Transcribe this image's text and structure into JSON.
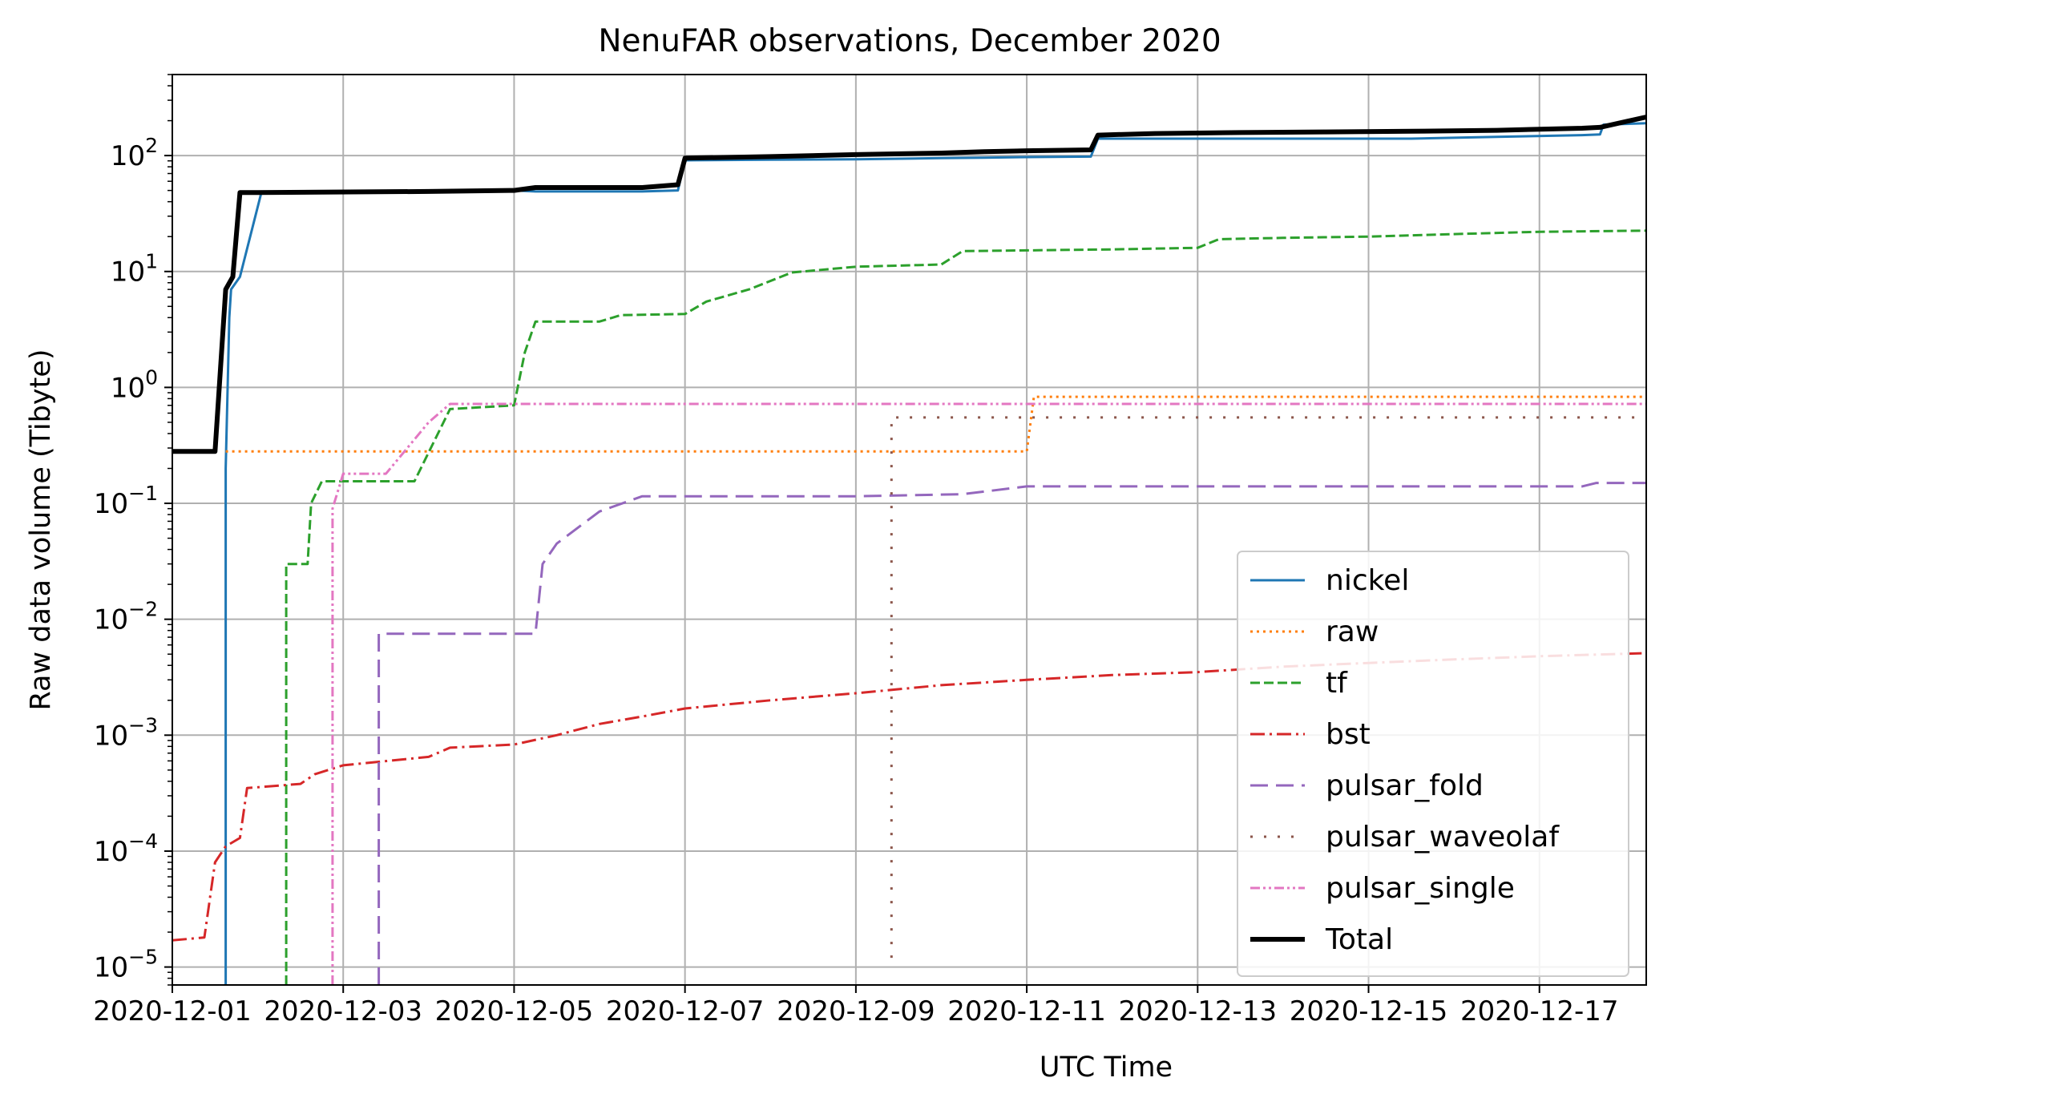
{
  "chart_data": {
    "type": "line",
    "title": "NenuFAR observations, December 2020",
    "xlabel": "UTC Time",
    "ylabel": "Raw data volume (Tibyte)",
    "x_range": [
      "2020-12-01T00:00",
      "2020-12-18T06:00"
    ],
    "y_scale": "log",
    "ylim": [
      7e-06,
      500
    ],
    "grid": true,
    "legend_position": "lower right",
    "x_ticks": [
      {
        "date": "2020-12-01",
        "label": "2020-12-01"
      },
      {
        "date": "2020-12-03",
        "label": "2020-12-03"
      },
      {
        "date": "2020-12-05",
        "label": "2020-12-05"
      },
      {
        "date": "2020-12-07",
        "label": "2020-12-07"
      },
      {
        "date": "2020-12-09",
        "label": "2020-12-09"
      },
      {
        "date": "2020-12-11",
        "label": "2020-12-11"
      },
      {
        "date": "2020-12-13",
        "label": "2020-12-13"
      },
      {
        "date": "2020-12-15",
        "label": "2020-12-15"
      },
      {
        "date": "2020-12-17",
        "label": "2020-12-17"
      }
    ],
    "y_ticks": [
      {
        "value": 1e-05,
        "base": "10",
        "exp": "−5"
      },
      {
        "value": 0.0001,
        "base": "10",
        "exp": "−4"
      },
      {
        "value": 0.001,
        "base": "10",
        "exp": "−3"
      },
      {
        "value": 0.01,
        "base": "10",
        "exp": "−2"
      },
      {
        "value": 0.1,
        "base": "10",
        "exp": "−1"
      },
      {
        "value": 1,
        "base": "10",
        "exp": "0"
      },
      {
        "value": 10,
        "base": "10",
        "exp": "1"
      },
      {
        "value": 100,
        "base": "10",
        "exp": "2"
      }
    ],
    "series": [
      {
        "name": "nickel",
        "color": "#1f77b4",
        "style": "solid",
        "x": [
          "2020-12-01T15:00",
          "2020-12-01T15:00",
          "2020-12-01T16:00",
          "2020-12-01T16:30",
          "2020-12-01T19:00",
          "2020-12-02T01:00",
          "2020-12-04T00:00",
          "2020-12-05T00:00",
          "2020-12-05T06:00",
          "2020-12-06T12:00",
          "2020-12-06T22:00",
          "2020-12-07T00:00",
          "2020-12-08T00:00",
          "2020-12-09T00:00",
          "2020-12-10T00:00",
          "2020-12-10T12:00",
          "2020-12-11T00:00",
          "2020-12-11T18:00",
          "2020-12-11T20:00",
          "2020-12-12T12:00",
          "2020-12-13T12:00",
          "2020-12-14T12:00",
          "2020-12-15T12:00",
          "2020-12-16T12:00",
          "2020-12-17T12:00",
          "2020-12-17T17:00",
          "2020-12-17T18:00",
          "2020-12-18T06:00"
        ],
        "y": [
          7e-06,
          0.2,
          4,
          7,
          9,
          48,
          49,
          50,
          49,
          49,
          50,
          91,
          92,
          93,
          95,
          96,
          97,
          98,
          140,
          140,
          140,
          140,
          140,
          145,
          150,
          152,
          185,
          190
        ]
      },
      {
        "name": "raw",
        "color": "#ff7f0e",
        "style": "dotted",
        "x": [
          "2020-12-01T15:00",
          "2020-12-11T00:00",
          "2020-12-11T02:00",
          "2020-12-18T06:00"
        ],
        "y": [
          0.28,
          0.28,
          0.83,
          0.83
        ]
      },
      {
        "name": "tf",
        "color": "#2ca02c",
        "style": "dashed",
        "x": [
          "2020-12-02T08:00",
          "2020-12-02T08:00",
          "2020-12-02T10:00",
          "2020-12-02T14:00",
          "2020-12-02T15:00",
          "2020-12-02T18:00",
          "2020-12-03T00:00",
          "2020-12-03T12:00",
          "2020-12-03T20:00",
          "2020-12-04T06:00",
          "2020-12-05T00:00",
          "2020-12-05T03:00",
          "2020-12-05T06:00",
          "2020-12-06T00:00",
          "2020-12-06T06:00",
          "2020-12-07T00:00",
          "2020-12-07T06:00",
          "2020-12-07T18:00",
          "2020-12-08T06:00",
          "2020-12-09T00:00",
          "2020-12-10T00:00",
          "2020-12-10T06:00",
          "2020-12-11T00:00",
          "2020-12-12T00:00",
          "2020-12-13T00:00",
          "2020-12-13T06:00",
          "2020-12-14T00:00",
          "2020-12-15T00:00",
          "2020-12-16T00:00",
          "2020-12-17T00:00",
          "2020-12-18T06:00"
        ],
        "y": [
          7e-06,
          0.03,
          0.03,
          0.03,
          0.1,
          0.155,
          0.155,
          0.155,
          0.155,
          0.65,
          0.7,
          2.0,
          3.7,
          3.7,
          4.2,
          4.3,
          5.5,
          7.0,
          9.8,
          11,
          11.5,
          15,
          15.2,
          15.5,
          16,
          19,
          19.5,
          20,
          21,
          22,
          22.5
        ]
      },
      {
        "name": "bst",
        "color": "#d62728",
        "style": "dashdot",
        "x": [
          "2020-12-01T00:00",
          "2020-12-01T09:00",
          "2020-12-01T12:00",
          "2020-12-01T15:00",
          "2020-12-01T19:00",
          "2020-12-01T21:00",
          "2020-12-02T12:00",
          "2020-12-02T16:00",
          "2020-12-03T00:00",
          "2020-12-04T00:00",
          "2020-12-04T06:00",
          "2020-12-05T00:00",
          "2020-12-05T12:00",
          "2020-12-06T00:00",
          "2020-12-06T12:00",
          "2020-12-07T00:00",
          "2020-12-08T00:00",
          "2020-12-09T00:00",
          "2020-12-10T00:00",
          "2020-12-11T00:00",
          "2020-12-12T00:00",
          "2020-12-13T00:00",
          "2020-12-14T00:00",
          "2020-12-15T00:00",
          "2020-12-16T00:00",
          "2020-12-17T00:00",
          "2020-12-18T06:00"
        ],
        "y": [
          1.7e-05,
          1.8e-05,
          8e-05,
          0.00011,
          0.00013,
          0.00035,
          0.00038,
          0.00046,
          0.00055,
          0.00065,
          0.00078,
          0.00083,
          0.001,
          0.00125,
          0.00145,
          0.0017,
          0.002,
          0.0023,
          0.0027,
          0.003,
          0.0033,
          0.0035,
          0.0039,
          0.0042,
          0.0045,
          0.0048,
          0.0051
        ]
      },
      {
        "name": "pulsar_fold",
        "color": "#9467bd",
        "style": "longdash",
        "x": [
          "2020-12-03T10:00",
          "2020-12-03T10:00",
          "2020-12-05T06:00",
          "2020-12-05T08:00",
          "2020-12-05T12:00",
          "2020-12-06T00:00",
          "2020-12-06T12:00",
          "2020-12-08T00:00",
          "2020-12-09T00:00",
          "2020-12-10T06:00",
          "2020-12-11T00:00",
          "2020-12-17T12:00",
          "2020-12-17T16:00",
          "2020-12-18T06:00"
        ],
        "y": [
          7e-06,
          0.0075,
          0.0075,
          0.03,
          0.045,
          0.085,
          0.115,
          0.115,
          0.115,
          0.12,
          0.14,
          0.14,
          0.15,
          0.15
        ]
      },
      {
        "name": "pulsar_waveolaf",
        "color": "#8c564b",
        "style": "sparse",
        "x": [
          "2020-12-09T10:00",
          "2020-12-09T10:00",
          "2020-12-18T06:00"
        ],
        "y": [
          1.2e-05,
          0.55,
          0.55
        ]
      },
      {
        "name": "pulsar_single",
        "color": "#e377c2",
        "style": "dashdotdot",
        "x": [
          "2020-12-02T21:00",
          "2020-12-02T21:00",
          "2020-12-03T00:00",
          "2020-12-03T12:00",
          "2020-12-03T18:00",
          "2020-12-04T00:00",
          "2020-12-04T06:00",
          "2020-12-18T06:00"
        ],
        "y": [
          7e-06,
          0.09,
          0.18,
          0.18,
          0.3,
          0.5,
          0.72,
          0.72
        ]
      },
      {
        "name": "Total",
        "color": "#000000",
        "style": "thick",
        "x": [
          "2020-12-01T00:00",
          "2020-12-01T12:00",
          "2020-12-01T15:00",
          "2020-12-01T17:00",
          "2020-12-01T19:00",
          "2020-12-02T00:00",
          "2020-12-04T00:00",
          "2020-12-05T00:00",
          "2020-12-05T06:00",
          "2020-12-06T12:00",
          "2020-12-06T22:00",
          "2020-12-07T00:00",
          "2020-12-08T00:00",
          "2020-12-09T00:00",
          "2020-12-10T00:00",
          "2020-12-10T12:00",
          "2020-12-11T00:00",
          "2020-12-11T18:00",
          "2020-12-11T20:00",
          "2020-12-12T12:00",
          "2020-12-13T12:00",
          "2020-12-14T12:00",
          "2020-12-15T12:00",
          "2020-12-16T12:00",
          "2020-12-17T12:00",
          "2020-12-17T17:00",
          "2020-12-18T06:00"
        ],
        "y": [
          0.28,
          0.28,
          7,
          9,
          48,
          48,
          49,
          50,
          53,
          53,
          56,
          95,
          98,
          102,
          105,
          108,
          110,
          112,
          150,
          155,
          158,
          160,
          162,
          165,
          172,
          175,
          215
        ]
      }
    ]
  }
}
